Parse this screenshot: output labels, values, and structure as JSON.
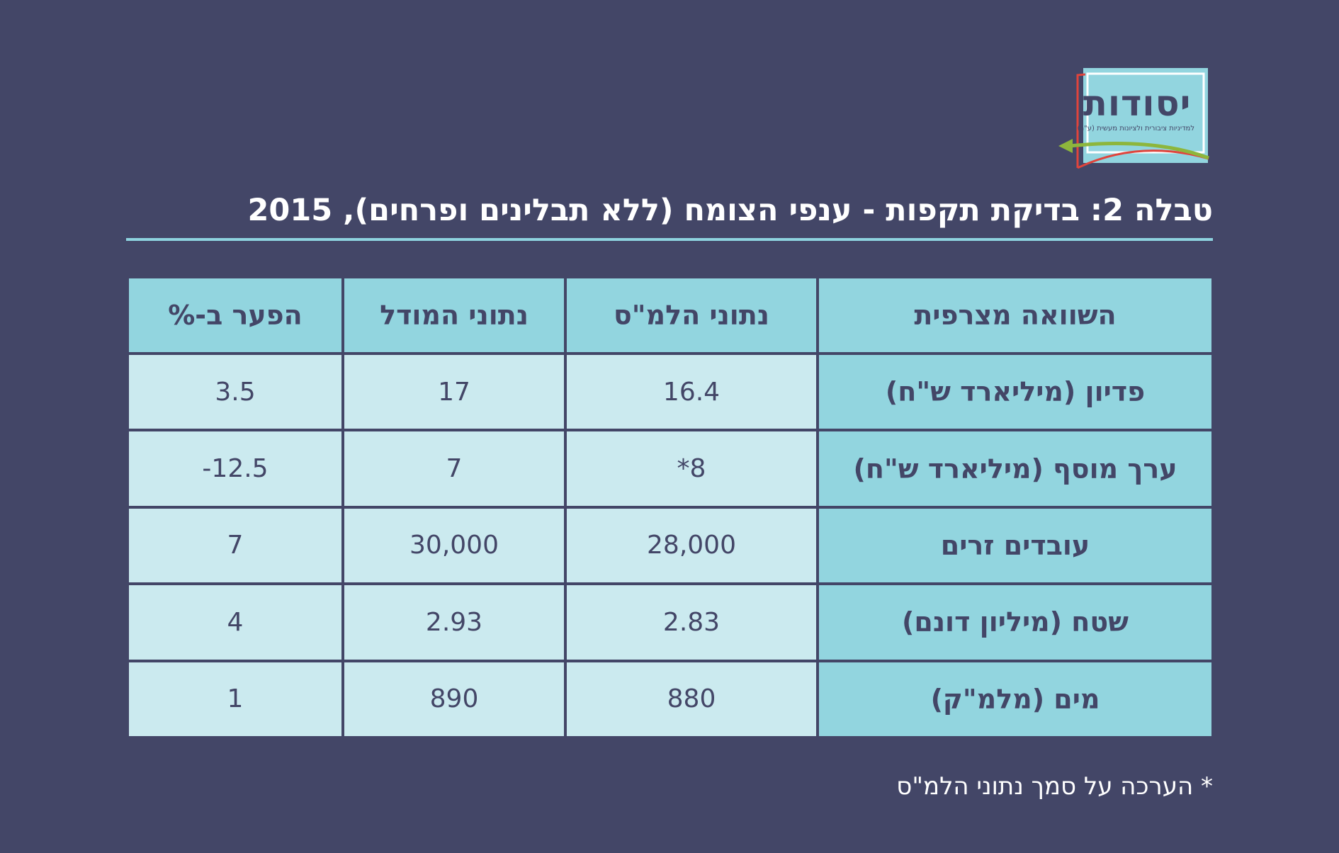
{
  "logo": {
    "name": "יסודות",
    "tagline": "למדיניות ציבורית ולציונות מעשית (ע\"ר)"
  },
  "title": "טבלה 2: בדיקת תקפות - ענפי הצומח (ללא תבלינים ופרחים), 2015",
  "table": {
    "headers": [
      "השוואה מצרפית",
      "נתוני הלמ\"ס",
      "נתוני המודל",
      "הפער ב-%"
    ],
    "rows": [
      {
        "label": "פדיון (מיליארד ש\"ח)",
        "cbs": "16.4",
        "model": "17",
        "gap": "3.5"
      },
      {
        "label": "ערך מוסף (מיליארד ש\"ח)",
        "cbs": "*8",
        "model": "7",
        "gap": "-12.5"
      },
      {
        "label": "עובדים זרים",
        "cbs": "28,000",
        "model": "30,000",
        "gap": "7"
      },
      {
        "label": "שטח (מיליון דונם)",
        "cbs": "2.83",
        "model": "2.93",
        "gap": "4"
      },
      {
        "label": "מים (מלמ\"ק)",
        "cbs": "880",
        "model": "890",
        "gap": "1"
      }
    ]
  },
  "footnote": "* הערכה על סמך נתוני הלמ\"ס",
  "colors": {
    "background": "#434667",
    "header_fill": "#92d5df",
    "cell_fill": "#cbeaef",
    "accent_rule": "#8ed3df",
    "logo_red": "#e0443c",
    "logo_green": "#8db63c"
  }
}
